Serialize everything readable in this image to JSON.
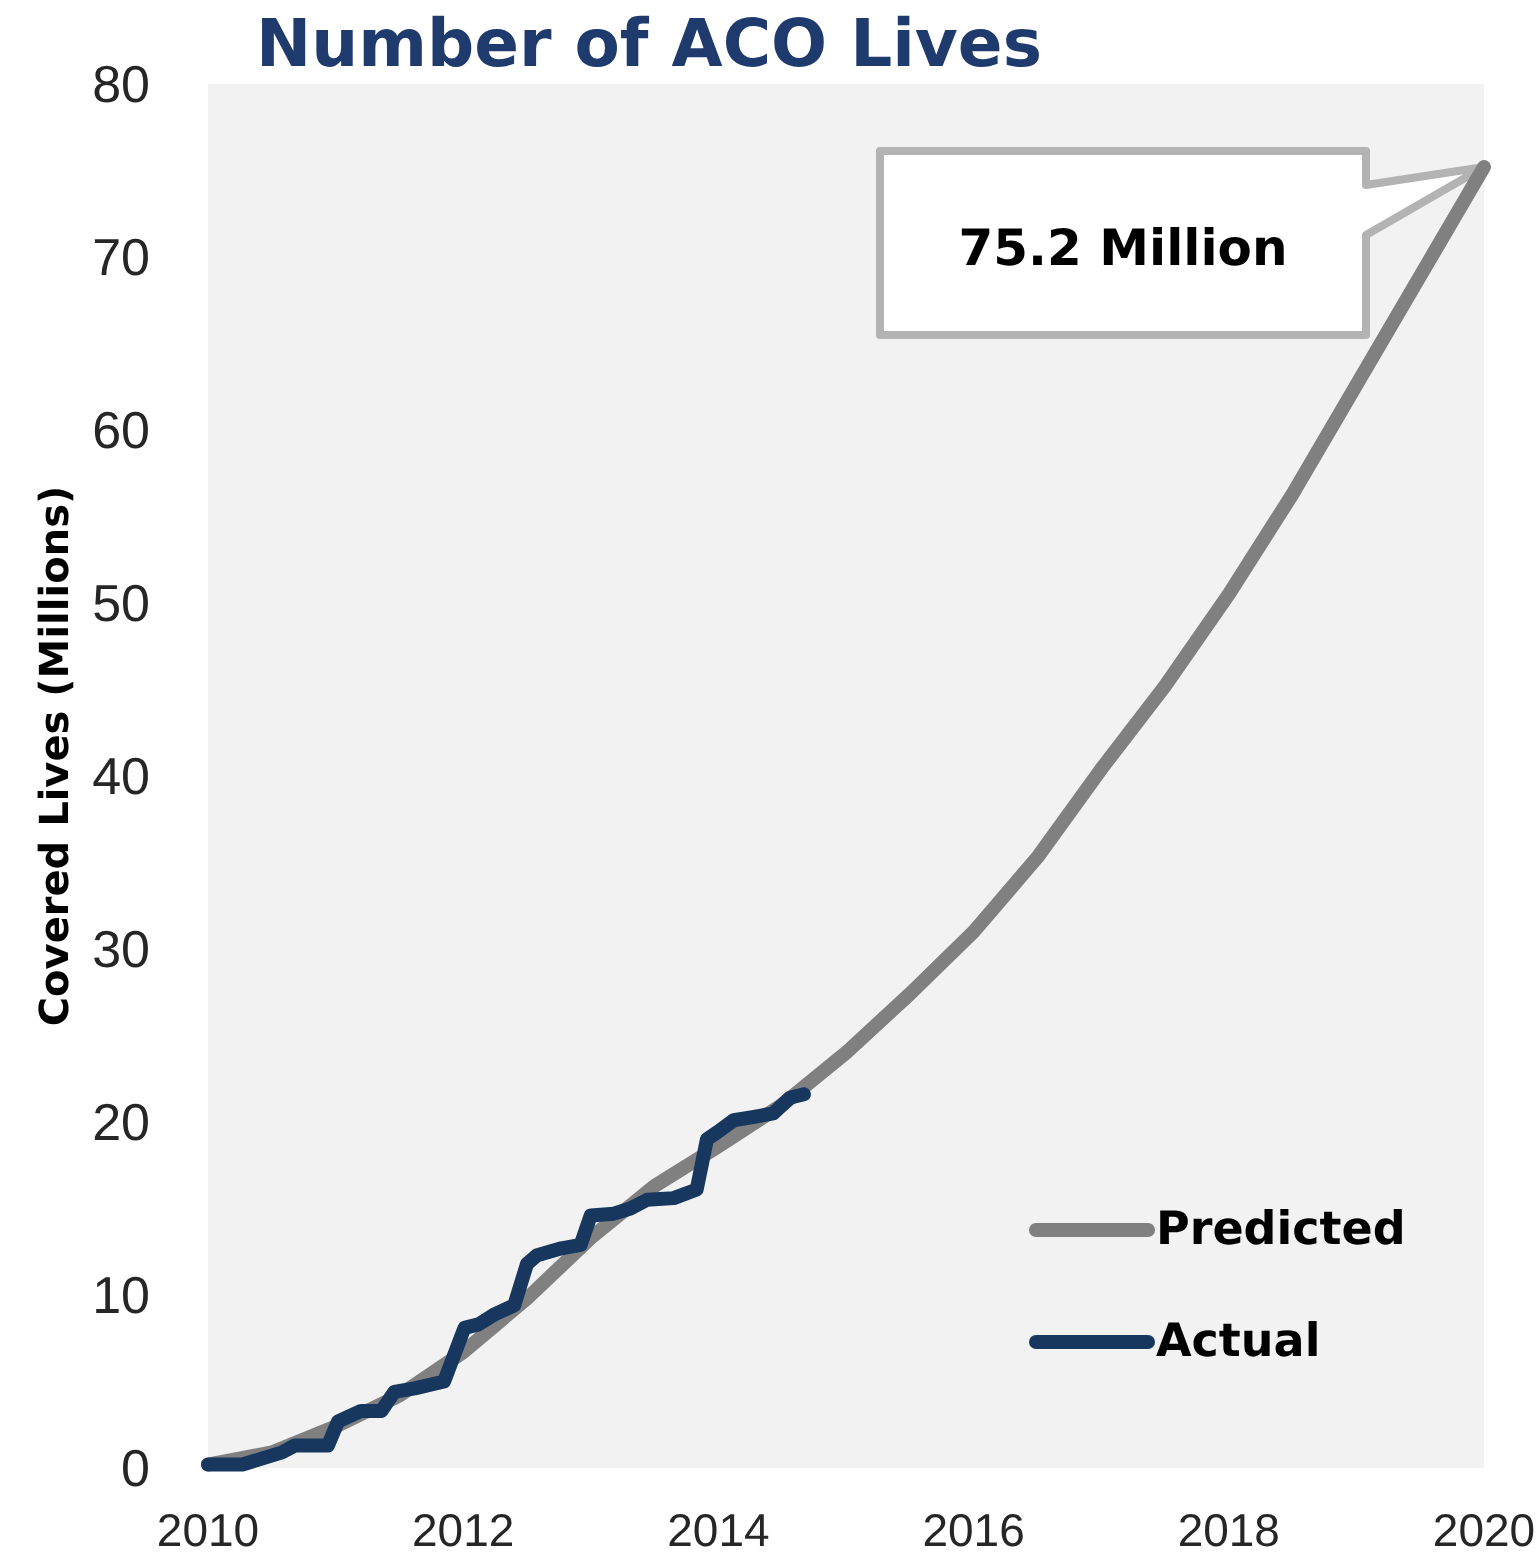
{
  "chart_data": {
    "type": "line",
    "title": "Number of ACO Lives",
    "ylabel": "Covered Lives (Millions)",
    "xlim": [
      2010,
      2020
    ],
    "xticks": [
      2010,
      2012,
      2014,
      2016,
      2018,
      2020
    ],
    "ylim": [
      0,
      80
    ],
    "yticks": [
      0,
      10,
      20,
      30,
      40,
      50,
      60,
      70,
      80
    ],
    "legend": "bottom right",
    "series": [
      {
        "name": "Predicted",
        "color": "#808080",
        "x": [
          2010,
          2010.5,
          2011,
          2011.5,
          2012,
          2012.5,
          2013,
          2013.5,
          2014,
          2014.5,
          2015,
          2015.5,
          2016,
          2016.5,
          2017,
          2017.5,
          2018,
          2018.5,
          2019,
          2019.5,
          2020
        ],
        "values": [
          0.2,
          0.9,
          2.4,
          4.2,
          6.7,
          9.8,
          13.3,
          16.3,
          18.6,
          21.0,
          24.0,
          27.4,
          31.0,
          35.3,
          40.4,
          45.2,
          50.5,
          56.3,
          62.6,
          68.9,
          75.2
        ]
      },
      {
        "name": "Actual",
        "color": "#17375e",
        "x": [
          2010.0,
          2010.27,
          2010.58,
          2010.68,
          2010.94,
          2011.02,
          2011.2,
          2011.36,
          2011.46,
          2011.62,
          2011.85,
          2012.01,
          2012.12,
          2012.25,
          2012.4,
          2012.5,
          2012.58,
          2012.77,
          2012.92,
          2013.0,
          2013.18,
          2013.31,
          2013.44,
          2013.65,
          2013.83,
          2013.91,
          2013.99,
          2014.12,
          2014.28,
          2014.43,
          2014.56,
          2014.67
        ],
        "values": [
          0.2,
          0.2,
          0.9,
          1.3,
          1.3,
          2.7,
          3.3,
          3.3,
          4.4,
          4.6,
          5.0,
          8.1,
          8.3,
          8.9,
          9.4,
          11.8,
          12.3,
          12.7,
          12.9,
          14.6,
          14.7,
          15.0,
          15.5,
          15.6,
          16.1,
          19.0,
          19.4,
          20.1,
          20.3,
          20.5,
          21.4,
          21.6
        ]
      }
    ],
    "annotations": [
      "75.2 Million"
    ]
  }
}
